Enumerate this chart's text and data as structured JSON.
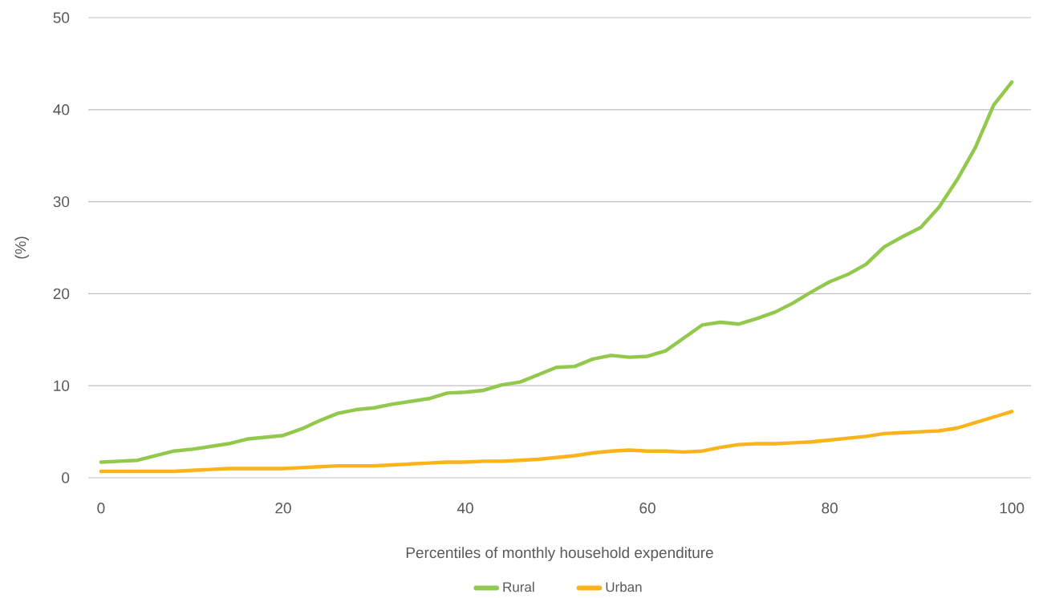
{
  "chart_data": {
    "type": "line",
    "xlabel": "Percentiles of monthly household expenditure",
    "ylabel": "(%)",
    "x": [
      0,
      2,
      4,
      6,
      8,
      10,
      12,
      14,
      16,
      18,
      20,
      22,
      24,
      26,
      28,
      30,
      32,
      34,
      36,
      38,
      40,
      42,
      44,
      46,
      48,
      50,
      52,
      54,
      56,
      58,
      60,
      62,
      64,
      66,
      68,
      70,
      72,
      74,
      76,
      78,
      80,
      82,
      84,
      86,
      88,
      90,
      92,
      94,
      96,
      98,
      100
    ],
    "series": [
      {
        "name": "Rural",
        "color": "#92c84c",
        "values": [
          1.7,
          1.8,
          1.9,
          2.4,
          2.9,
          3.1,
          3.4,
          3.7,
          4.2,
          4.4,
          4.6,
          5.3,
          6.2,
          7.0,
          7.4,
          7.6,
          8.0,
          8.3,
          8.6,
          9.2,
          9.3,
          9.5,
          10.1,
          10.4,
          11.2,
          12.0,
          12.1,
          12.9,
          13.3,
          13.1,
          13.2,
          13.8,
          15.2,
          16.6,
          16.9,
          16.7,
          17.3,
          18.0,
          19.0,
          20.2,
          21.3,
          22.1,
          23.2,
          25.1,
          26.2,
          27.2,
          29.4,
          32.4,
          35.9,
          40.5,
          43.0
        ]
      },
      {
        "name": "Urban",
        "color": "#fbb31b",
        "values": [
          0.7,
          0.7,
          0.7,
          0.7,
          0.7,
          0.8,
          0.9,
          1.0,
          1.0,
          1.0,
          1.0,
          1.1,
          1.2,
          1.3,
          1.3,
          1.3,
          1.4,
          1.5,
          1.6,
          1.7,
          1.7,
          1.8,
          1.8,
          1.9,
          2.0,
          2.2,
          2.4,
          2.7,
          2.9,
          3.0,
          2.9,
          2.9,
          2.8,
          2.9,
          3.3,
          3.6,
          3.7,
          3.7,
          3.8,
          3.9,
          4.1,
          4.3,
          4.5,
          4.8,
          4.9,
          5.0,
          5.1,
          5.4,
          6.0,
          6.6,
          7.2
        ]
      }
    ],
    "xlim": [
      -1.4,
      102.1
    ],
    "ylim": [
      0,
      50
    ],
    "xticks": [
      0,
      20,
      40,
      60,
      80,
      100
    ],
    "yticks": [
      0,
      10,
      20,
      30,
      40,
      50
    ],
    "grid": "y",
    "legend": "bottom",
    "marker": "none",
    "line_style": "solid"
  }
}
